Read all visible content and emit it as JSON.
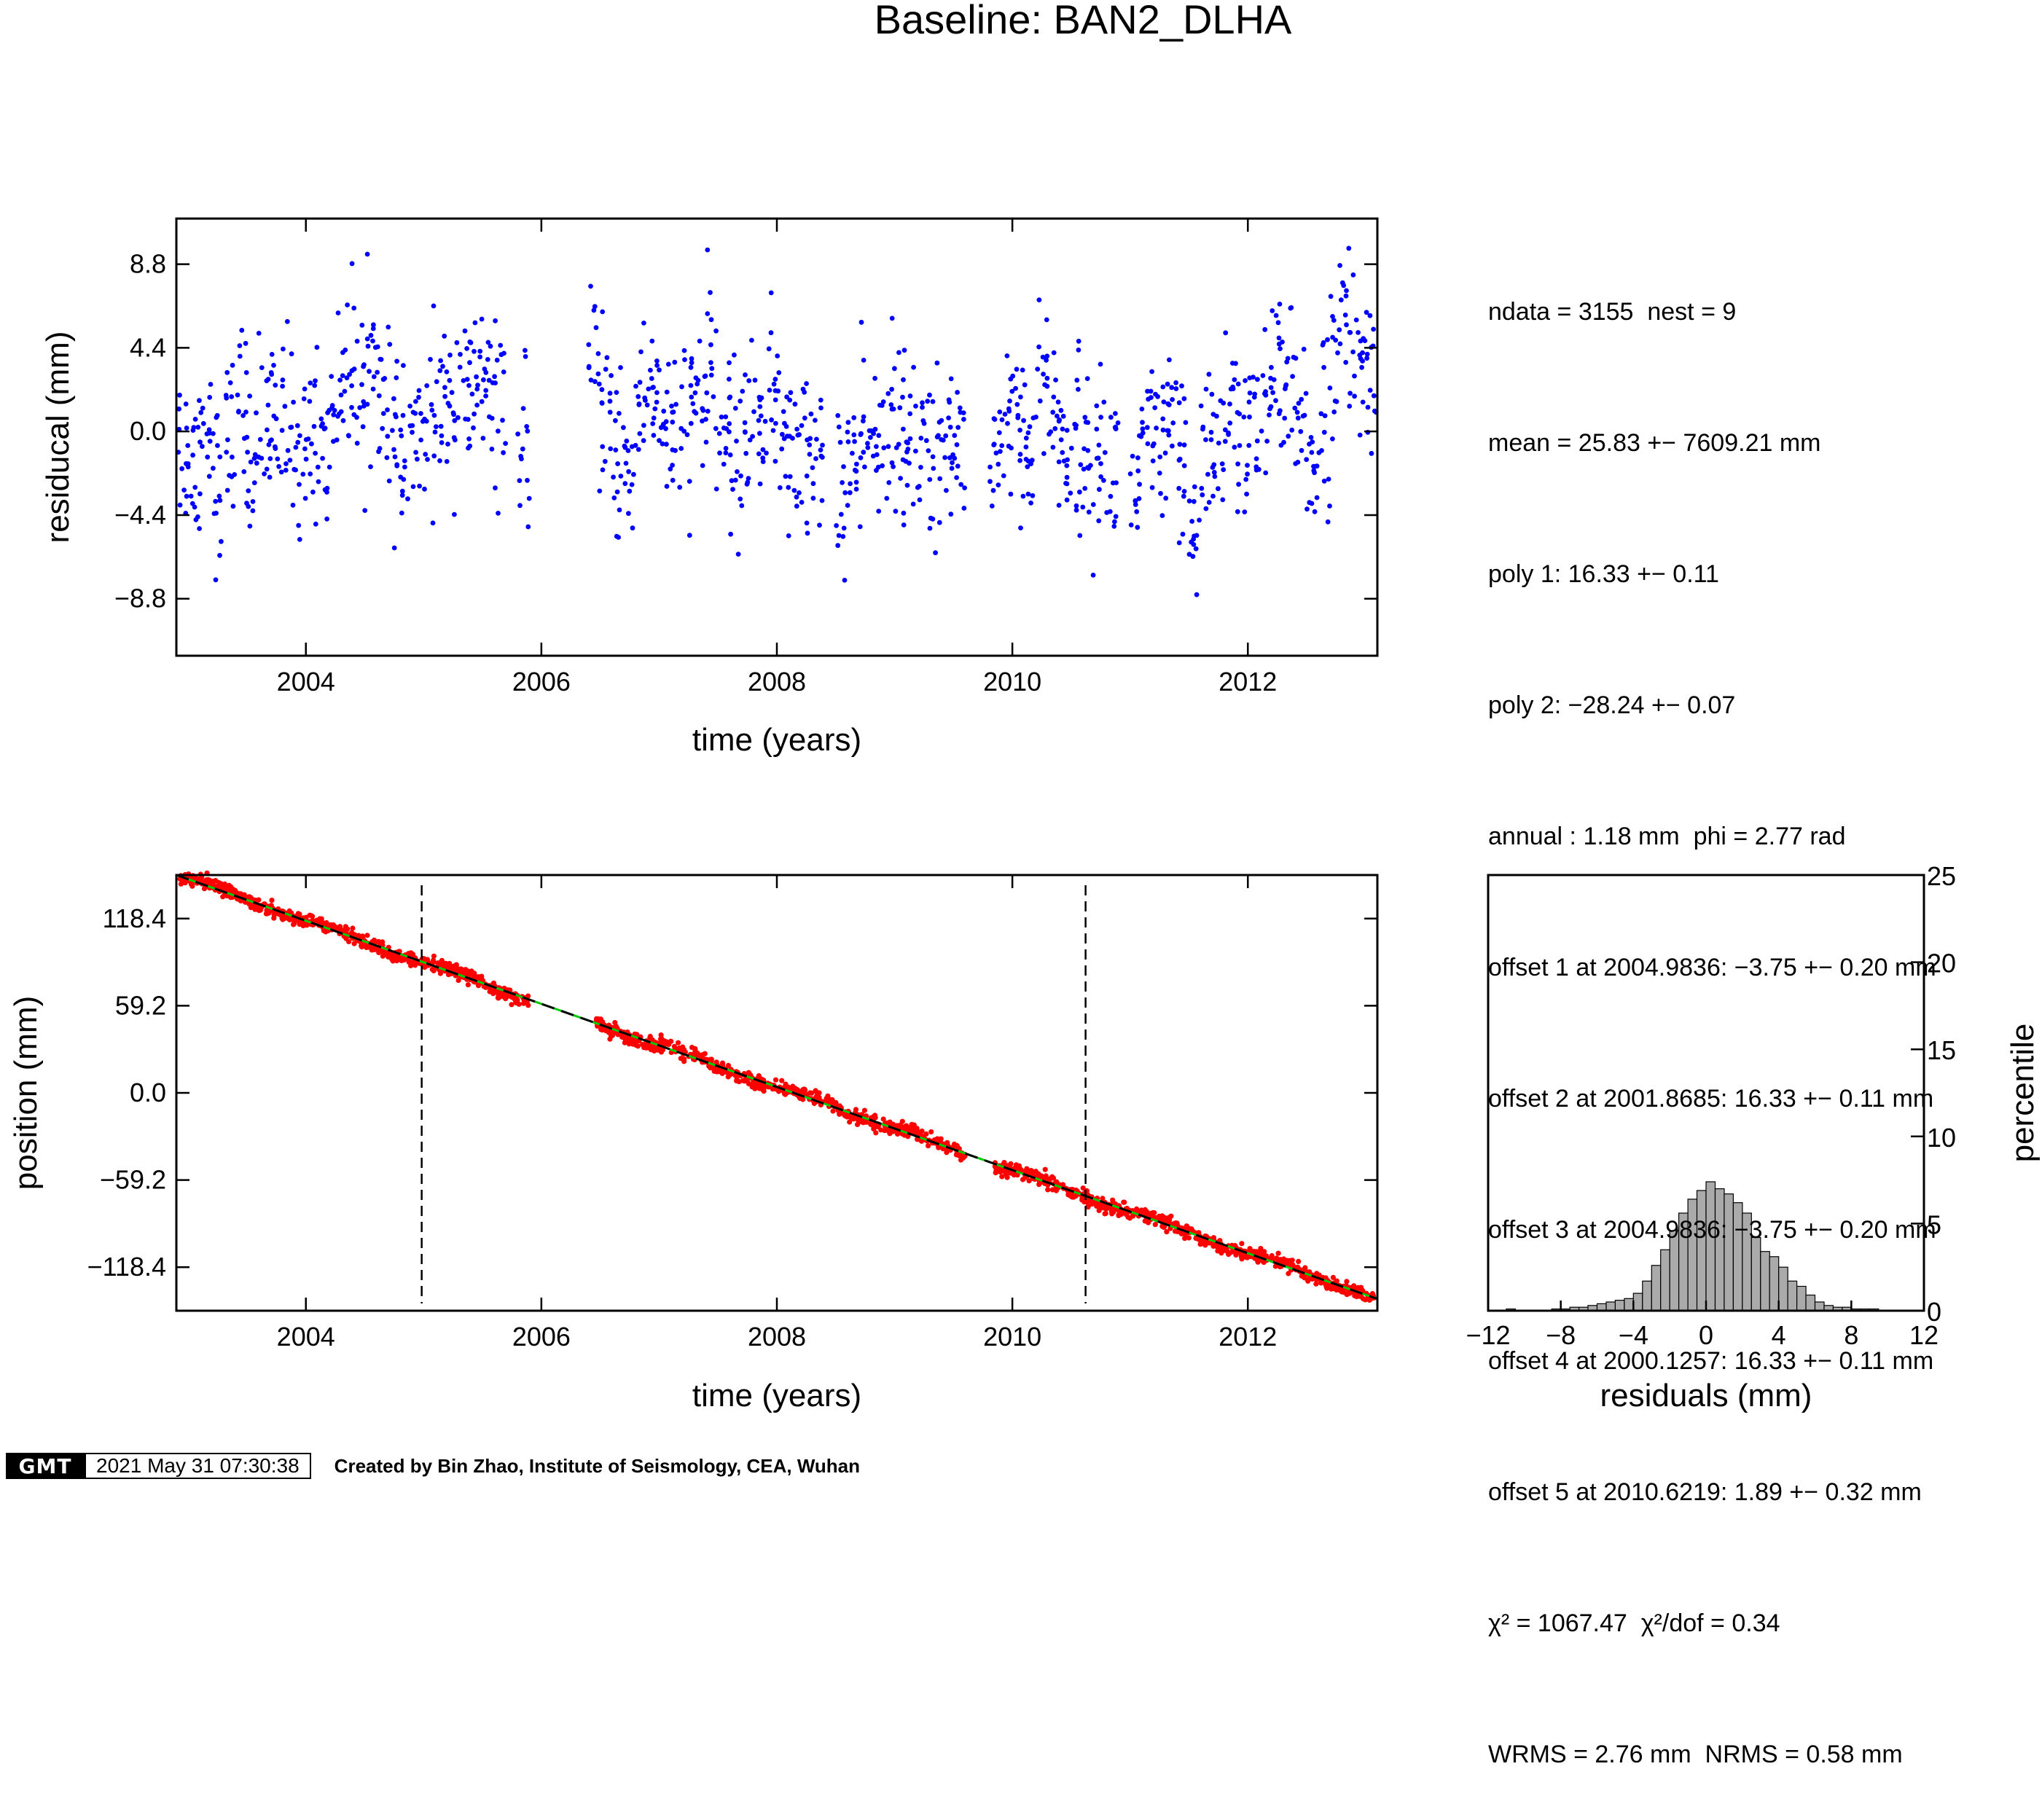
{
  "title": "Baseline: BAN2_DLHA",
  "stats": [
    "ndata = 3155  nest = 9",
    "mean = 25.83 +− 7609.21 mm",
    "poly 1: 16.33 +− 0.11",
    "poly 2: −28.24 +− 0.07",
    "annual : 1.18 mm  phi = 2.77 rad",
    "offset 1 at 2004.9836: −3.75 +− 0.20 mm",
    "offset 2 at 2001.8685: 16.33 +− 0.11 mm",
    "offset 3 at 2004.9836: −3.75 +− 0.20 mm",
    "offset 4 at 2000.1257: 16.33 +− 0.11 mm",
    "offset 5 at 2010.6219: 1.89 +− 0.32 mm",
    "χ² = 1067.47  χ²/dof = 0.34",
    "WRMS = 2.76 mm  NRMS = 0.58 mm"
  ],
  "footer": {
    "logo": "GMT",
    "timestamp": "2021 May 31 07:30:38",
    "credit": "Created by Bin Zhao, Institute of Seismology, CEA, Wuhan"
  },
  "colors": {
    "residual_points": "#0000ff",
    "position_points": "#ff0000",
    "model_line": "#000000",
    "trend_line": "#00cc00",
    "histogram_bars": "#aaaaaa"
  },
  "chart_data": [
    {
      "type": "scatter",
      "name": "residuals-panel",
      "xlabel": "time (years)",
      "ylabel": "residucal (mm)",
      "xlim": [
        2002.9,
        2013.1
      ],
      "ylim": [
        -11.8,
        11.2
      ],
      "xticks": [
        2004,
        2006,
        2008,
        2010,
        2012
      ],
      "xtick_labels": [
        "2004",
        "2006",
        "2008",
        "2010",
        "2012"
      ],
      "yticks": [
        -8.8,
        -4.4,
        0.0,
        4.4,
        8.8
      ],
      "ytick_labels": [
        "−8.8",
        "−4.4",
        "0.0",
        "4.4",
        "8.8"
      ],
      "grid": false,
      "x": [
        2002.95,
        2003.05,
        2003.15,
        2003.25,
        2003.35,
        2003.45,
        2003.55,
        2003.65,
        2003.75,
        2003.85,
        2003.95,
        2004.05,
        2004.15,
        2004.25,
        2004.35,
        2004.45,
        2004.55,
        2004.65,
        2004.75,
        2004.85,
        2004.95,
        2005.05,
        2005.15,
        2005.25,
        2005.35,
        2005.45,
        2005.55,
        2005.65,
        2005.85,
        2006.45,
        2006.55,
        2006.65,
        2006.75,
        2006.85,
        2006.95,
        2007.05,
        2007.15,
        2007.25,
        2007.35,
        2007.45,
        2007.55,
        2007.65,
        2007.75,
        2007.85,
        2007.95,
        2008.05,
        2008.15,
        2008.25,
        2008.35,
        2008.55,
        2008.65,
        2008.75,
        2008.85,
        2008.95,
        2009.05,
        2009.15,
        2009.25,
        2009.35,
        2009.45,
        2009.55,
        2009.85,
        2009.95,
        2010.05,
        2010.15,
        2010.25,
        2010.35,
        2010.45,
        2010.55,
        2010.65,
        2010.75,
        2010.85,
        2011.05,
        2011.15,
        2011.25,
        2011.35,
        2011.45,
        2011.55,
        2011.65,
        2011.75,
        2011.85,
        2011.95,
        2012.05,
        2012.15,
        2012.25,
        2012.35,
        2012.45,
        2012.55,
        2012.65,
        2012.75,
        2012.85,
        2012.95,
        2013.05
      ],
      "y": [
        -0.8,
        -1.2,
        0.3,
        -2.5,
        -0.5,
        1.2,
        -1.8,
        0.5,
        -0.2,
        1.0,
        -1.5,
        0.2,
        -0.6,
        1.5,
        2.5,
        3.2,
        3.5,
        2.0,
        -0.5,
        -1.5,
        -0.8,
        0.5,
        1.2,
        2.0,
        1.5,
        2.5,
        1.8,
        1.0,
        -0.3,
        2.5,
        1.0,
        -1.5,
        -2.0,
        1.5,
        2.5,
        0.5,
        -1.0,
        0.8,
        1.5,
        2.8,
        0.5,
        -1.2,
        -0.5,
        1.0,
        1.8,
        0.3,
        -1.5,
        -0.8,
        -2.0,
        -2.5,
        -1.8,
        -1.2,
        -0.5,
        0.8,
        -0.3,
        -1.5,
        -0.5,
        -2.0,
        -1.0,
        -0.2,
        -1.0,
        0.5,
        1.2,
        -0.8,
        2.8,
        0.5,
        -1.0,
        -0.5,
        -1.8,
        -0.5,
        -2.0,
        -2.8,
        -0.8,
        -1.5,
        0.5,
        -2.5,
        -5.5,
        -0.5,
        -1.0,
        0.5,
        0.2,
        -0.3,
        1.8,
        2.5,
        1.5,
        0.8,
        -1.5,
        1.0,
        4.0,
        5.5,
        3.0,
        3.5
      ],
      "scatter_sd": 2.2
    },
    {
      "type": "scatter",
      "name": "position-panel",
      "xlabel": "time (years)",
      "ylabel": "position (mm)",
      "xlim": [
        2002.9,
        2013.1
      ],
      "ylim": [
        -148,
        148
      ],
      "xticks": [
        2004,
        2006,
        2008,
        2010,
        2012
      ],
      "xtick_labels": [
        "2004",
        "2006",
        "2008",
        "2010",
        "2012"
      ],
      "yticks": [
        -118.4,
        -59.2,
        0.0,
        59.2,
        118.4
      ],
      "ytick_labels": [
        "−118.4",
        "−59.2",
        "0.0",
        "59.2",
        "118.4"
      ],
      "model": {
        "start": [
          2002.9,
          148
        ],
        "end": [
          2013.1,
          -140
        ]
      },
      "offset_epochs": [
        2004.9836,
        2010.6219
      ],
      "gaps": [
        [
          2005.9,
          2006.45
        ],
        [
          2009.6,
          2009.85
        ]
      ]
    },
    {
      "type": "bar",
      "name": "histogram-panel",
      "xlabel": "residuals (mm)",
      "ylabel": "percentile",
      "xlim": [
        -12,
        12
      ],
      "ylim": [
        0,
        25
      ],
      "xticks": [
        -12,
        -8,
        -4,
        0,
        4,
        8,
        12
      ],
      "xtick_labels": [
        "−12",
        "−8",
        "−4",
        "0",
        "4",
        "8",
        "12"
      ],
      "yticks": [
        0,
        5,
        10,
        15,
        20,
        25
      ],
      "ytick_labels": [
        "0",
        "5",
        "10",
        "15",
        "20",
        "25"
      ],
      "bin_width": 0.5,
      "bin_start": -11.5,
      "values": [
        0,
        0.1,
        0,
        0,
        0,
        0,
        0.1,
        0.1,
        0.2,
        0.2,
        0.3,
        0.4,
        0.5,
        0.6,
        0.7,
        1.0,
        1.7,
        2.6,
        3.5,
        4.6,
        5.6,
        6.4,
        6.9,
        7.4,
        7.0,
        6.7,
        6.2,
        5.6,
        4.2,
        3.4,
        3.1,
        2.5,
        1.7,
        1.4,
        0.9,
        0.5,
        0.3,
        0.2,
        0.2,
        0.1,
        0.1,
        0.1,
        0,
        0
      ]
    }
  ]
}
